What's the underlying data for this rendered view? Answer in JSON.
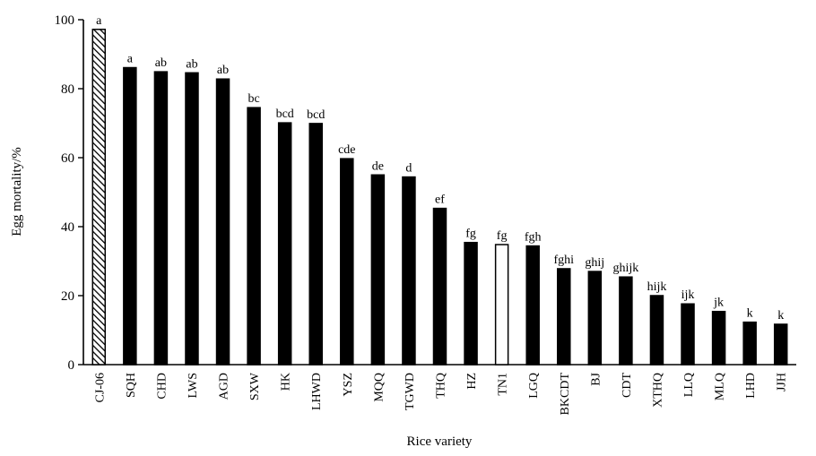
{
  "chart_data": {
    "type": "bar",
    "title": "",
    "xlabel": "Rice variety",
    "ylabel": "Egg mortality/%",
    "ylim": [
      0,
      100
    ],
    "yticks": [
      0,
      20,
      40,
      60,
      80,
      100
    ],
    "categories": [
      "CJ-06",
      "SQH",
      "CHD",
      "LWS",
      "AGD",
      "SXW",
      "HK",
      "LHWD",
      "YSZ",
      "MQQ",
      "TGWD",
      "THQ",
      "HZ",
      "TN1",
      "LGQ",
      "BKCDT",
      "BJ",
      "CDT",
      "XTHQ",
      "LLQ",
      "MLQ",
      "LHD",
      "JJH"
    ],
    "values": [
      97.2,
      86.1,
      84.9,
      84.6,
      82.8,
      74.5,
      70.1,
      69.9,
      59.7,
      55.0,
      54.4,
      45.3,
      35.4,
      34.8,
      34.4,
      27.8,
      27.0,
      25.4,
      20.0,
      17.6,
      15.4,
      12.3,
      11.7
    ],
    "significance": [
      "a",
      "a",
      "ab",
      "ab",
      "ab",
      "bc",
      "bcd",
      "bcd",
      "cde",
      "de",
      "d",
      "ef",
      "fg",
      "fg",
      "fgh",
      "fghi",
      "ghij",
      "ghijk",
      "hijk",
      "ijk",
      "jk",
      "k",
      "k"
    ],
    "bar_styles": [
      "hatched",
      "solid",
      "solid",
      "solid",
      "solid",
      "solid",
      "solid",
      "solid",
      "solid",
      "solid",
      "solid",
      "solid",
      "solid",
      "open",
      "solid",
      "solid",
      "solid",
      "solid",
      "solid",
      "solid",
      "solid",
      "solid",
      "solid"
    ],
    "grid": false,
    "legend": "none"
  }
}
